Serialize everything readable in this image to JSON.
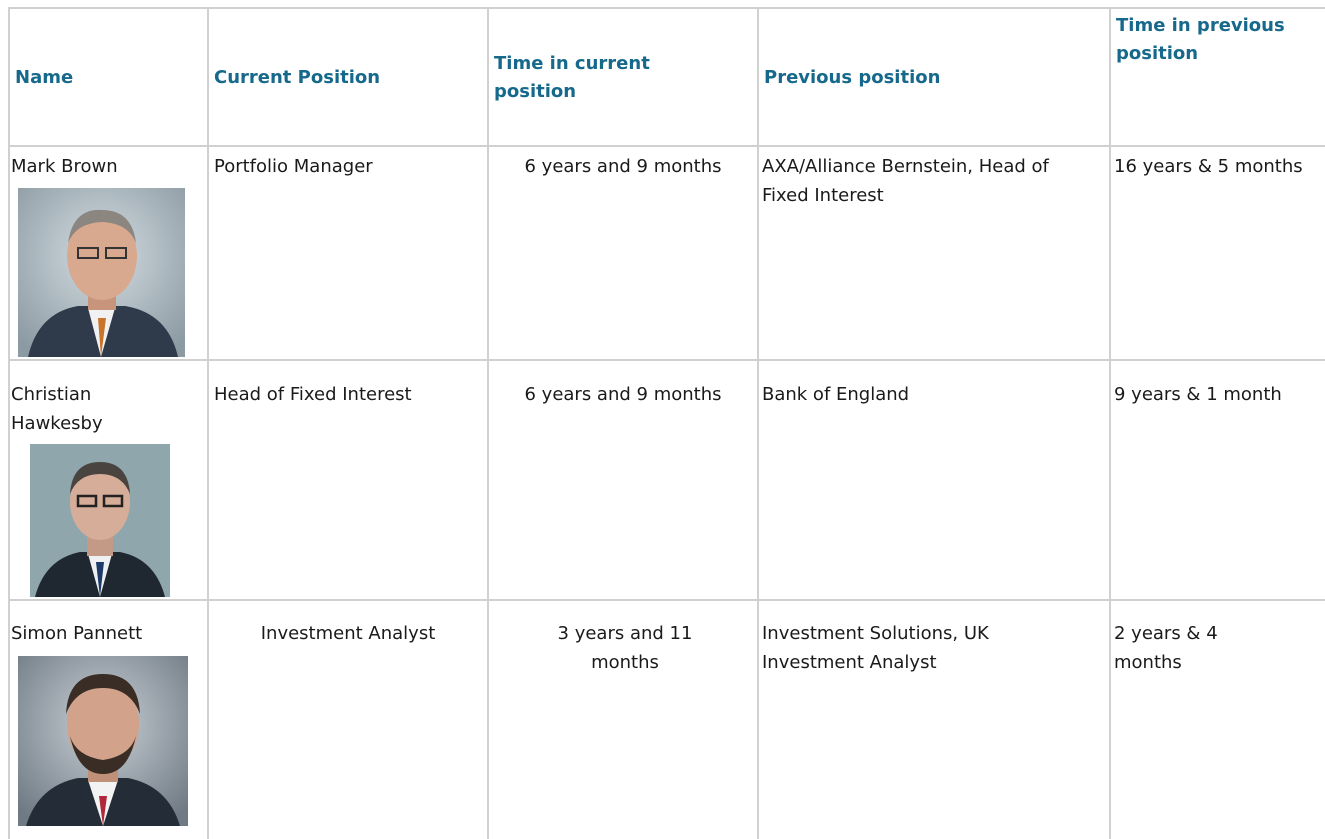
{
  "table": {
    "header": [
      "Name",
      "Current Position",
      "Time in current position",
      "Previous position",
      "Time in previous position"
    ],
    "rows": [
      [
        "Mark Brown",
        "Portfolio Manager",
        "6 years and 9 months",
        "AXA/Alliance Bernstein, Head of Fixed Interest",
        "16 years & 5 months"
      ],
      [
        "Christian Hawkesby",
        "Head of Fixed Interest",
        "6 years and 9 months",
        "Bank of England",
        "9 years & 1 month"
      ],
      [
        "Simon Pannett",
        "Investment Analyst",
        "3 years and 11 months",
        "Investment Solutions, UK Investment Analyst",
        "2 years & 4 months"
      ]
    ]
  }
}
